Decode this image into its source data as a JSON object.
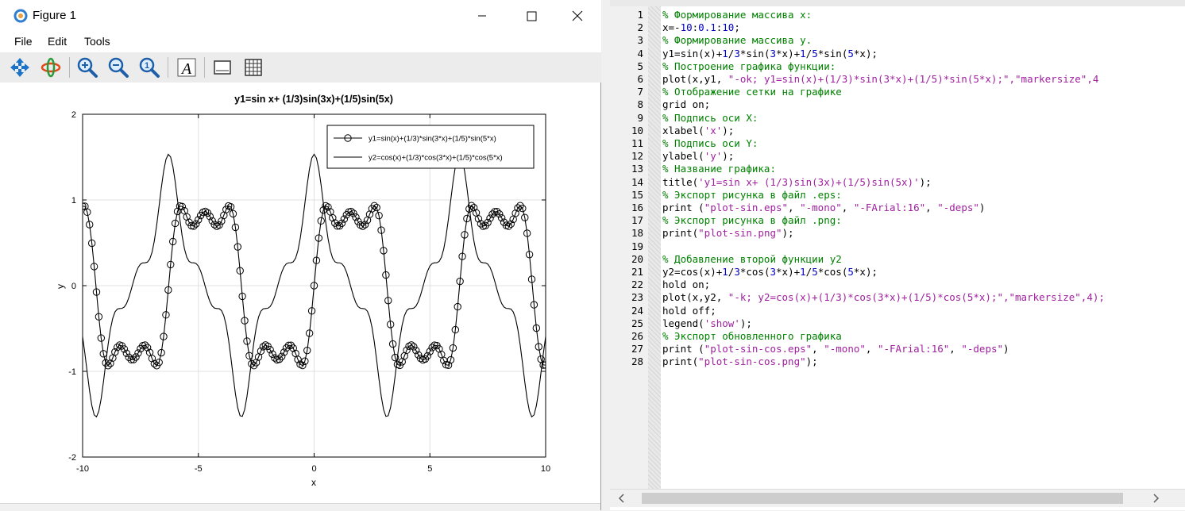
{
  "window": {
    "title": "Figure 1",
    "menu": [
      "File",
      "Edit",
      "Tools"
    ],
    "toolbar_icons": [
      "pan-icon",
      "rotate-icon",
      "zoom-in-icon",
      "zoom-out-icon",
      "zoom-reset-icon",
      "text-icon",
      "axes-toggle-icon",
      "grid-toggle-icon"
    ]
  },
  "chart_data": {
    "type": "line",
    "title": "y1=sin x+ (1/3)sin(3x)+(1/5)sin(5x)",
    "xlabel": "x",
    "ylabel": "y",
    "xlim": [
      -10,
      10
    ],
    "ylim": [
      -2,
      2
    ],
    "xticks": [
      -10,
      -5,
      0,
      5,
      10
    ],
    "yticks": [
      -2,
      -1,
      0,
      1,
      2
    ],
    "grid": true,
    "legend_position": "top-right",
    "x": {
      "start": -10,
      "stop": 10,
      "step": 0.1
    },
    "series": [
      {
        "name": "y1=sin(x)+(1/3)*sin(3*x)+(1/5)*sin(5*x)",
        "function": "sin(x)+(1/3)*sin(3*x)+(1/5)*sin(5*x)",
        "marker": "circle",
        "color": "#000000"
      },
      {
        "name": "y2=cos(x)+(1/3)*cos(3*x)+(1/5)*cos(5*x)",
        "function": "cos(x)+(1/3)*cos(3*x)+(1/5)*cos(5*x)",
        "marker": "none",
        "color": "#000000"
      }
    ]
  },
  "editor": {
    "lines": [
      {
        "n": "1",
        "tokens": [
          [
            "cm",
            "% Формирование массива x:"
          ]
        ]
      },
      {
        "n": "2",
        "tokens": [
          [
            "kw",
            "x=-"
          ],
          [
            "num",
            "10"
          ],
          [
            "kw",
            ":"
          ],
          [
            "num",
            "0.1"
          ],
          [
            "kw",
            ":"
          ],
          [
            "num",
            "10"
          ],
          [
            "kw",
            ";"
          ]
        ]
      },
      {
        "n": "3",
        "tokens": [
          [
            "cm",
            "% Формирование массива y."
          ]
        ]
      },
      {
        "n": "4",
        "tokens": [
          [
            "kw",
            "y1=sin(x)+"
          ],
          [
            "num",
            "1"
          ],
          [
            "kw",
            "/"
          ],
          [
            "num",
            "3"
          ],
          [
            "kw",
            "*sin("
          ],
          [
            "num",
            "3"
          ],
          [
            "kw",
            "*x)+"
          ],
          [
            "num",
            "1"
          ],
          [
            "kw",
            "/"
          ],
          [
            "num",
            "5"
          ],
          [
            "kw",
            "*sin("
          ],
          [
            "num",
            "5"
          ],
          [
            "kw",
            "*x);"
          ]
        ]
      },
      {
        "n": "5",
        "tokens": [
          [
            "cm",
            "% Построение графика функции:"
          ]
        ]
      },
      {
        "n": "6",
        "tokens": [
          [
            "kw",
            "plot(x,y1, "
          ],
          [
            "str",
            "\"-ok; y1=sin(x)+(1/3)*sin(3*x)+(1/5)*sin(5*x);\",\"markersize\",4"
          ]
        ]
      },
      {
        "n": "7",
        "tokens": [
          [
            "cm",
            "% Отображение сетки на графике"
          ]
        ]
      },
      {
        "n": "8",
        "tokens": [
          [
            "kw",
            "grid on;"
          ]
        ]
      },
      {
        "n": "9",
        "tokens": [
          [
            "cm",
            "% Подпись оси X:"
          ]
        ]
      },
      {
        "n": "10",
        "tokens": [
          [
            "kw",
            "xlabel("
          ],
          [
            "str",
            "'x'"
          ],
          [
            "kw",
            ");"
          ]
        ]
      },
      {
        "n": "11",
        "tokens": [
          [
            "cm",
            "% Подпись оси Y:"
          ]
        ]
      },
      {
        "n": "12",
        "tokens": [
          [
            "kw",
            "ylabel("
          ],
          [
            "str",
            "'y'"
          ],
          [
            "kw",
            ");"
          ]
        ]
      },
      {
        "n": "13",
        "tokens": [
          [
            "cm",
            "% Название графика:"
          ]
        ]
      },
      {
        "n": "14",
        "tokens": [
          [
            "kw",
            "title("
          ],
          [
            "str",
            "'y1=sin x+ (1/3)sin(3x)+(1/5)sin(5x)'"
          ],
          [
            "kw",
            ");"
          ]
        ]
      },
      {
        "n": "15",
        "tokens": [
          [
            "cm",
            "% Экспорт рисунка в файл .eps:"
          ]
        ]
      },
      {
        "n": "16",
        "tokens": [
          [
            "kw",
            "print ("
          ],
          [
            "str",
            "\"plot-sin.eps\""
          ],
          [
            "kw",
            ", "
          ],
          [
            "str",
            "\"-mono\""
          ],
          [
            "kw",
            ", "
          ],
          [
            "str",
            "\"-FArial:16\""
          ],
          [
            "kw",
            ", "
          ],
          [
            "str",
            "\"-deps\""
          ],
          [
            "kw",
            ")"
          ]
        ]
      },
      {
        "n": "17",
        "tokens": [
          [
            "cm",
            "% Экспорт рисунка в файл .png:"
          ]
        ]
      },
      {
        "n": "18",
        "tokens": [
          [
            "kw",
            "print("
          ],
          [
            "str",
            "\"plot-sin.png\""
          ],
          [
            "kw",
            ");"
          ]
        ]
      },
      {
        "n": "19",
        "tokens": [
          [
            "kw",
            ""
          ]
        ]
      },
      {
        "n": "20",
        "tokens": [
          [
            "cm",
            "% Добавление второй функции y2"
          ]
        ]
      },
      {
        "n": "21",
        "tokens": [
          [
            "kw",
            "y2=cos(x)+"
          ],
          [
            "num",
            "1"
          ],
          [
            "kw",
            "/"
          ],
          [
            "num",
            "3"
          ],
          [
            "kw",
            "*cos("
          ],
          [
            "num",
            "3"
          ],
          [
            "kw",
            "*x)+"
          ],
          [
            "num",
            "1"
          ],
          [
            "kw",
            "/"
          ],
          [
            "num",
            "5"
          ],
          [
            "kw",
            "*cos("
          ],
          [
            "num",
            "5"
          ],
          [
            "kw",
            "*x);"
          ]
        ]
      },
      {
        "n": "22",
        "tokens": [
          [
            "kw",
            "hold on;"
          ]
        ]
      },
      {
        "n": "23",
        "tokens": [
          [
            "kw",
            "plot(x,y2, "
          ],
          [
            "str",
            "\"-k; y2=cos(x)+(1/3)*cos(3*x)+(1/5)*cos(5*x);\",\"markersize\",4);"
          ]
        ]
      },
      {
        "n": "24",
        "tokens": [
          [
            "kw",
            "hold off;"
          ]
        ]
      },
      {
        "n": "25",
        "tokens": [
          [
            "kw",
            "legend("
          ],
          [
            "str",
            "'show'"
          ],
          [
            "kw",
            ");"
          ]
        ]
      },
      {
        "n": "26",
        "tokens": [
          [
            "cm",
            "% Экспорт обновленного графика"
          ]
        ]
      },
      {
        "n": "27",
        "tokens": [
          [
            "kw",
            "print ("
          ],
          [
            "str",
            "\"plot-sin-cos.eps\""
          ],
          [
            "kw",
            ", "
          ],
          [
            "str",
            "\"-mono\""
          ],
          [
            "kw",
            ", "
          ],
          [
            "str",
            "\"-FArial:16\""
          ],
          [
            "kw",
            ", "
          ],
          [
            "str",
            "\"-deps\""
          ],
          [
            "kw",
            ")"
          ]
        ]
      },
      {
        "n": "28",
        "tokens": [
          [
            "kw",
            "print("
          ],
          [
            "str",
            "\"plot-sin-cos.png\""
          ],
          [
            "kw",
            ");"
          ]
        ]
      }
    ]
  }
}
